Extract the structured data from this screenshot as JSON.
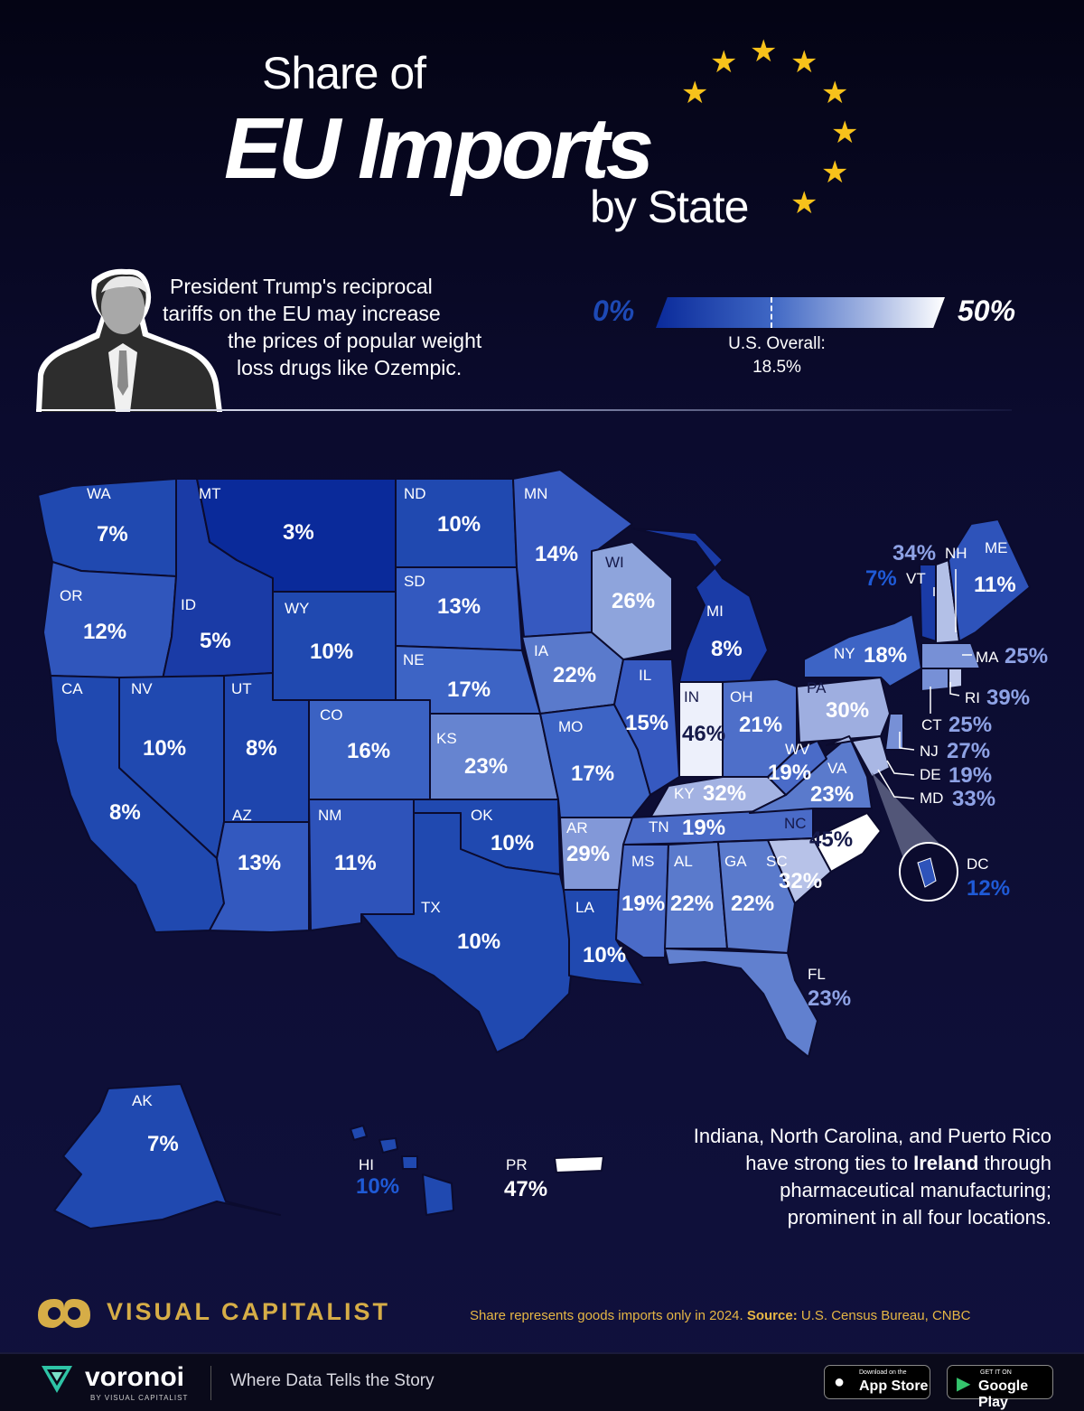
{
  "title": {
    "line1": "Share of",
    "line2": "EU Imports",
    "line3": "by State"
  },
  "intro": [
    "President Trump's reciprocal",
    "tariffs on the EU may increase",
    "the prices of popular weight",
    "loss drugs like Ozempic."
  ],
  "legend": {
    "min_label": "0%",
    "max_label": "50%",
    "overall_label": "U.S. Overall:",
    "overall_value": "18.5%",
    "overall_fraction": 0.37
  },
  "colors": {
    "background": "#0b0b2e",
    "low": "#0a2a9a",
    "high": "#ffffff",
    "star": "#f7c21b",
    "brand_gold": "#d6ad47"
  },
  "states": [
    {
      "abbr": "WA",
      "value": "7%"
    },
    {
      "abbr": "MT",
      "value": "3%"
    },
    {
      "abbr": "ND",
      "value": "10%"
    },
    {
      "abbr": "MN",
      "value": "14%"
    },
    {
      "abbr": "OR",
      "value": "12%"
    },
    {
      "abbr": "ID",
      "value": "5%"
    },
    {
      "abbr": "WY",
      "value": "10%"
    },
    {
      "abbr": "SD",
      "value": "13%"
    },
    {
      "abbr": "WI",
      "value": "26%"
    },
    {
      "abbr": "MI",
      "value": "8%"
    },
    {
      "abbr": "ME",
      "value": "11%"
    },
    {
      "abbr": "NH",
      "value": "34%"
    },
    {
      "abbr": "VT",
      "value": "7%"
    },
    {
      "abbr": "NY",
      "value": "18%"
    },
    {
      "abbr": "MA",
      "value": "25%"
    },
    {
      "abbr": "RI",
      "value": "39%"
    },
    {
      "abbr": "CT",
      "value": "25%"
    },
    {
      "abbr": "NJ",
      "value": "27%"
    },
    {
      "abbr": "DE",
      "value": "19%"
    },
    {
      "abbr": "MD",
      "value": "33%"
    },
    {
      "abbr": "DC",
      "value": "12%"
    },
    {
      "abbr": "CA",
      "value": "8%"
    },
    {
      "abbr": "NV",
      "value": "10%"
    },
    {
      "abbr": "UT",
      "value": "8%"
    },
    {
      "abbr": "CO",
      "value": "16%"
    },
    {
      "abbr": "NE",
      "value": "17%"
    },
    {
      "abbr": "IA",
      "value": "22%"
    },
    {
      "abbr": "IL",
      "value": "15%"
    },
    {
      "abbr": "IN",
      "value": "46%"
    },
    {
      "abbr": "OH",
      "value": "21%"
    },
    {
      "abbr": "PA",
      "value": "30%"
    },
    {
      "abbr": "KS",
      "value": "23%"
    },
    {
      "abbr": "MO",
      "value": "17%"
    },
    {
      "abbr": "KY",
      "value": "32%"
    },
    {
      "abbr": "WV",
      "value": "19%"
    },
    {
      "abbr": "VA",
      "value": "23%"
    },
    {
      "abbr": "AZ",
      "value": "13%"
    },
    {
      "abbr": "NM",
      "value": "11%"
    },
    {
      "abbr": "OK",
      "value": "10%"
    },
    {
      "abbr": "AR",
      "value": "29%"
    },
    {
      "abbr": "TN",
      "value": "19%"
    },
    {
      "abbr": "NC",
      "value": "45%"
    },
    {
      "abbr": "TX",
      "value": "10%"
    },
    {
      "abbr": "LA",
      "value": "10%"
    },
    {
      "abbr": "MS",
      "value": "19%"
    },
    {
      "abbr": "AL",
      "value": "22%"
    },
    {
      "abbr": "GA",
      "value": "22%"
    },
    {
      "abbr": "SC",
      "value": "32%"
    },
    {
      "abbr": "FL",
      "value": "23%"
    },
    {
      "abbr": "AK",
      "value": "7%"
    },
    {
      "abbr": "HI",
      "value": "10%"
    },
    {
      "abbr": "PR",
      "value": "47%"
    }
  ],
  "note": {
    "line1": "Indiana, North Carolina, and Puerto Rico",
    "line2_pre": "have strong ties to ",
    "line2_bold": "Ireland",
    "line2_post": " through",
    "line3": "pharmaceutical manufacturing;",
    "line4": "prominent in all four locations."
  },
  "footer": {
    "brand": "VISUAL CAPITALIST",
    "source_pre": "Share represents goods imports only in 2024. ",
    "source_bold": "Source:",
    "source_post": " U.S. Census Bureau, CNBC",
    "voronoi": "voronoi",
    "voronoi_sub": "BY VISUAL CAPITALIST",
    "tagline": "Where Data Tells the Story",
    "app_store_small": "Download on the",
    "app_store": "App Store",
    "google_small": "GET IT ON",
    "google": "Google Play"
  }
}
